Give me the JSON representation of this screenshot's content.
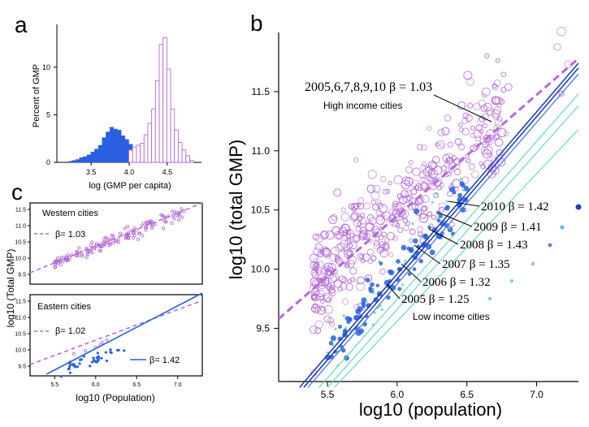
{
  "panel_labels": {
    "a": "a",
    "b": "b",
    "c": "c"
  },
  "colors": {
    "purple": "#b469d8",
    "blue": "#2a5fe0",
    "teal": "#5fd6b4",
    "dark_blue": "#1f3fb8"
  },
  "chart_data": [
    {
      "id": "a",
      "type": "bar",
      "title": "",
      "xlabel": "log (GMP per capita)",
      "ylabel": "Percent of GMP",
      "xlim": [
        3.05,
        4.95
      ],
      "ylim": [
        0,
        14.5
      ],
      "xticks": [
        "3.5",
        "4.0",
        "4.5"
      ],
      "yticks": [
        "0",
        "5",
        "10"
      ],
      "bin_width": 0.05,
      "series": [
        {
          "name": "Low income cities",
          "style": "filled-blue",
          "x": [
            3.22,
            3.27,
            3.32,
            3.37,
            3.42,
            3.47,
            3.52,
            3.57,
            3.62,
            3.67,
            3.72,
            3.77,
            3.82,
            3.87,
            3.92,
            3.97,
            4.02
          ],
          "values": [
            0.1,
            0.2,
            0.3,
            0.5,
            0.6,
            0.8,
            1.1,
            1.4,
            1.8,
            2.6,
            3.2,
            3.7,
            3.5,
            3.4,
            2.8,
            2.4,
            1.9
          ]
        },
        {
          "name": "High income cities",
          "style": "open-purple",
          "x": [
            4.02,
            4.07,
            4.12,
            4.17,
            4.22,
            4.27,
            4.32,
            4.37,
            4.42,
            4.47,
            4.52,
            4.57,
            4.62,
            4.67,
            4.72,
            4.77,
            4.82
          ],
          "values": [
            1.3,
            1.6,
            1.8,
            2.0,
            2.9,
            4.1,
            5.6,
            8.6,
            12.4,
            13.1,
            9.8,
            5.6,
            3.4,
            2.1,
            1.3,
            0.7,
            0.2
          ]
        }
      ]
    },
    {
      "id": "b",
      "type": "scatter",
      "xlabel": "log10 (population)",
      "ylabel": "log10 (total GMP)",
      "xlim": [
        5.15,
        7.3
      ],
      "ylim": [
        9.05,
        12.0
      ],
      "xticks": [
        "5.5",
        "6.0",
        "6.5",
        "7.0"
      ],
      "yticks": [
        "9.5",
        "10.0",
        "10.5",
        "11.0",
        "11.5"
      ],
      "fits": [
        {
          "label": "2005,6,7,8,9,10 β = 1.03",
          "beta": 1.03,
          "x0": 5.15,
          "y0": 9.58,
          "x1": 7.3,
          "y1": 11.78,
          "style": "dashed-purple"
        },
        {
          "label": "2010 β = 1.42",
          "beta": 1.42,
          "x0": 5.3,
          "y0": 9.0,
          "x1": 7.3,
          "y1": 11.74,
          "style": "blue"
        },
        {
          "label": "2009 β = 1.41",
          "beta": 1.41,
          "x0": 5.33,
          "y0": 9.0,
          "x1": 7.3,
          "y1": 11.7,
          "style": "blue"
        },
        {
          "label": "2008 β = 1.43",
          "beta": 1.43,
          "x0": 5.36,
          "y0": 9.0,
          "x1": 7.3,
          "y1": 11.65,
          "style": "blue-light"
        },
        {
          "label": "2007 β = 1.35",
          "beta": 1.35,
          "x0": 5.44,
          "y0": 9.0,
          "x1": 7.3,
          "y1": 11.48,
          "style": "teal"
        },
        {
          "label": "2006 β = 1.32",
          "beta": 1.32,
          "x0": 5.5,
          "y0": 9.0,
          "x1": 7.3,
          "y1": 11.38,
          "style": "teal"
        },
        {
          "label": "2005 β = 1.25",
          "beta": 1.25,
          "x0": 5.55,
          "y0": 9.0,
          "x1": 7.3,
          "y1": 11.18,
          "style": "teal"
        }
      ],
      "annotations": {
        "high_label": "2005,6,7,8,9,10 β = 1.03",
        "high_sub": "High income cities",
        "low_sub": "Low income cities",
        "year_labels": [
          "2010 β = 1.42",
          "2009 β = 1.41",
          "2008 β = 1.43",
          "2007 β = 1.35",
          "2006 β = 1.32",
          "2005 β = 1.25"
        ]
      },
      "series": [
        {
          "name": "High income cities",
          "marker": "open-circle",
          "color": "#b469d8",
          "point_count": 420,
          "x_range": [
            5.4,
            7.25
          ],
          "trend": {
            "slope": 1.03,
            "intercept_at_5_15": 9.58
          }
        },
        {
          "name": "Low income cities",
          "marker": "filled-dot",
          "color": "#2a5fe0",
          "point_count": 140,
          "x_range": [
            5.5,
            6.5
          ],
          "trend": {
            "slope": 1.35,
            "intercept_at_5_15": 8.82
          }
        }
      ]
    },
    {
      "id": "c-top",
      "type": "scatter",
      "title": "Western cities",
      "xlabel": "",
      "ylabel": "",
      "xlim": [
        5.2,
        7.3
      ],
      "ylim": [
        9.2,
        11.7
      ],
      "yticks": [
        "9.5",
        "10.0",
        "10.5",
        "11.0",
        "11.5"
      ],
      "fit": {
        "label": "β= 1.03",
        "beta": 1.03,
        "style": "dashed-purple"
      }
    },
    {
      "id": "c-bottom",
      "type": "scatter",
      "title": "Eastern cities",
      "xlabel": "log10 (Population)",
      "ylabel": "",
      "xlim": [
        5.2,
        7.3
      ],
      "ylim": [
        9.2,
        11.7
      ],
      "xticks": [
        "5.5",
        "6.0",
        "6.5",
        "7.0"
      ],
      "yticks": [
        "9.5",
        "10.0",
        "10.5",
        "11.0",
        "11.5"
      ],
      "fits": [
        {
          "label": "β= 1.02",
          "beta": 1.02,
          "style": "dashed-purple"
        },
        {
          "label": "β= 1.42",
          "beta": 1.42,
          "style": "blue"
        }
      ]
    }
  ],
  "shared_c_ylabel": "log10 (Total GMP)"
}
